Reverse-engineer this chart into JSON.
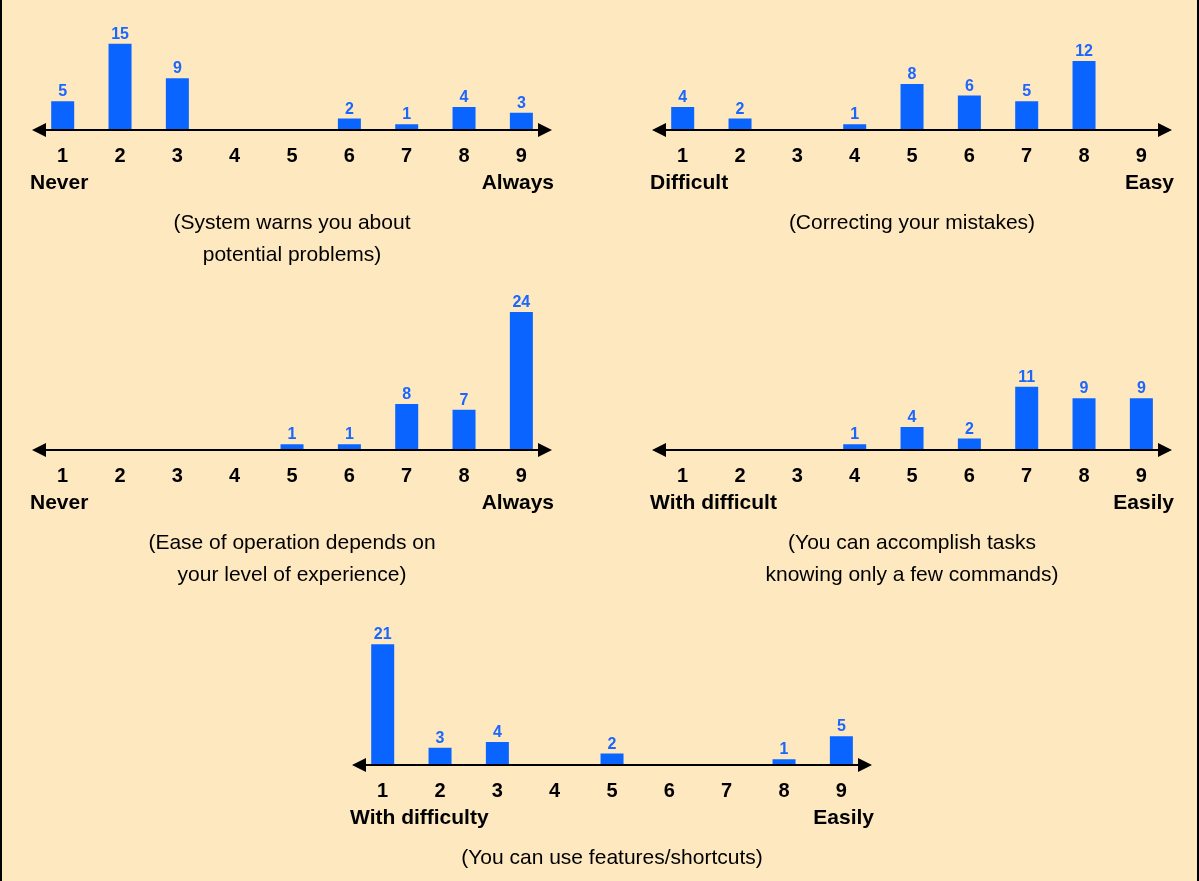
{
  "chart_data": [
    {
      "type": "bar",
      "categories": [
        "1",
        "2",
        "3",
        "4",
        "5",
        "6",
        "7",
        "8",
        "9"
      ],
      "values": [
        5,
        15,
        9,
        null,
        null,
        2,
        1,
        4,
        3
      ],
      "color": "#0a64ff",
      "data_labels": true,
      "xlabel": "(System warns you about\npotential problems)",
      "annotations": [
        "Never",
        "Always"
      ]
    },
    {
      "type": "bar",
      "categories": [
        "1",
        "2",
        "3",
        "4",
        "5",
        "6",
        "7",
        "8",
        "9"
      ],
      "values": [
        4,
        2,
        null,
        1,
        8,
        6,
        5,
        12,
        null
      ],
      "color": "#0a64ff",
      "data_labels": true,
      "xlabel": "(Correcting your mistakes)",
      "annotations": [
        "Difficult",
        "Easy"
      ]
    },
    {
      "type": "bar",
      "categories": [
        "1",
        "2",
        "3",
        "4",
        "5",
        "6",
        "7",
        "8",
        "9"
      ],
      "values": [
        null,
        null,
        null,
        null,
        1,
        1,
        8,
        7,
        24
      ],
      "color": "#0a64ff",
      "data_labels": true,
      "xlabel": "(Ease of operation depends on\nyour level of experience)",
      "annotations": [
        "Never",
        "Always"
      ]
    },
    {
      "type": "bar",
      "categories": [
        "1",
        "2",
        "3",
        "4",
        "5",
        "6",
        "7",
        "8",
        "9"
      ],
      "values": [
        null,
        null,
        null,
        1,
        4,
        2,
        11,
        9,
        9
      ],
      "color": "#0a64ff",
      "data_labels": true,
      "xlabel": "(You can accomplish tasks\nknowing only a few commands)",
      "annotations": [
        "With difficult",
        "Easily"
      ]
    },
    {
      "type": "bar",
      "categories": [
        "1",
        "2",
        "3",
        "4",
        "5",
        "6",
        "7",
        "8",
        "9"
      ],
      "values": [
        21,
        3,
        4,
        null,
        2,
        null,
        null,
        1,
        5
      ],
      "color": "#0a64ff",
      "data_labels": true,
      "xlabel": "(You can use features/shortcuts)",
      "annotations": [
        "With difficulty",
        "Easily"
      ]
    }
  ]
}
